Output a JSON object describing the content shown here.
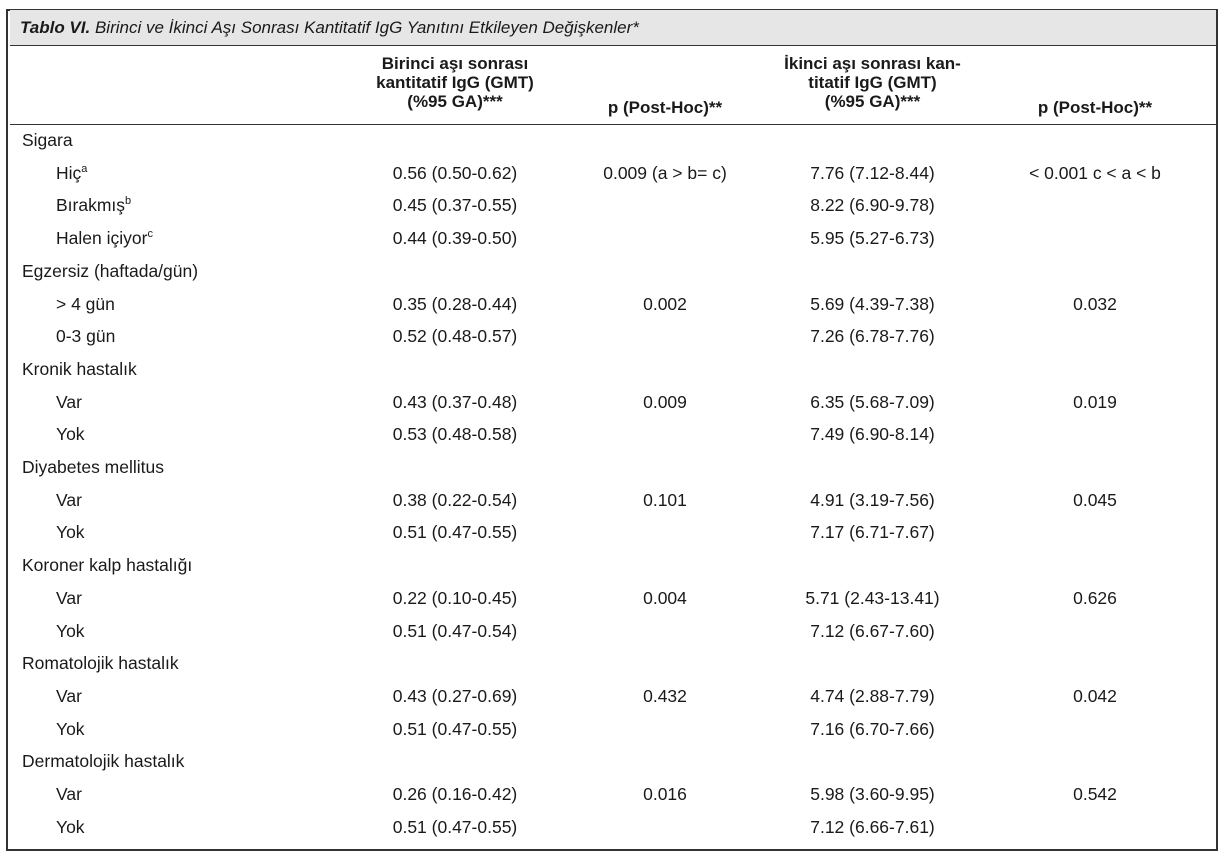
{
  "table": {
    "caption_label": "Tablo VI.",
    "caption_text": "Birinci ve İkinci Aşı Sonrası Kantitatif IgG Yanıtını Etkileyen Değişkenler*",
    "headers": {
      "col1_line1": "Birinci aşı sonrası",
      "col1_line2": "kantitatif IgG (GMT)",
      "col1_line3": "(%95 GA)***",
      "col2": "p (Post-Hoc)**",
      "col3_line1": "İkinci aşı sonrası kan-",
      "col3_line2": "titatif IgG (GMT)",
      "col3_line3": "(%95 GA)***",
      "col4": "p (Post-Hoc)**"
    },
    "groups": [
      {
        "label": "Sigara",
        "rows": [
          {
            "label": "Hiç",
            "sup": "a",
            "v1": "0.56 (0.50-0.62)",
            "p1": "0.009 (a > b= c)",
            "v2": "7.76 (7.12-8.44)",
            "p2": "< 0.001 c < a < b"
          },
          {
            "label": "Bırakmış",
            "sup": "b",
            "v1": "0.45 (0.37-0.55)",
            "p1": "",
            "v2": "8.22 (6.90-9.78)",
            "p2": ""
          },
          {
            "label": "Halen içiyor",
            "sup": "c",
            "v1": "0.44 (0.39-0.50)",
            "p1": "",
            "v2": "5.95 (5.27-6.73)",
            "p2": ""
          }
        ]
      },
      {
        "label": "Egzersiz (haftada/gün)",
        "rows": [
          {
            "label": "> 4 gün",
            "sup": "",
            "v1": "0.35 (0.28-0.44)",
            "p1": "0.002",
            "v2": "5.69 (4.39-7.38)",
            "p2": "0.032"
          },
          {
            "label": "0-3 gün",
            "sup": "",
            "v1": "0.52 (0.48-0.57)",
            "p1": "",
            "v2": "7.26 (6.78-7.76)",
            "p2": ""
          }
        ]
      },
      {
        "label": "Kronik hastalık",
        "rows": [
          {
            "label": "Var",
            "sup": "",
            "v1": "0.43 (0.37-0.48)",
            "p1": "0.009",
            "v2": "6.35 (5.68-7.09)",
            "p2": "0.019"
          },
          {
            "label": "Yok",
            "sup": "",
            "v1": "0.53 (0.48-0.58)",
            "p1": "",
            "v2": "7.49 (6.90-8.14)",
            "p2": ""
          }
        ]
      },
      {
        "label": "Diyabetes mellitus",
        "rows": [
          {
            "label": "Var",
            "sup": "",
            "v1": "0.38 (0.22-0.54)",
            "p1": "0.101",
            "v2": "4.91 (3.19-7.56)",
            "p2": "0.045"
          },
          {
            "label": "Yok",
            "sup": "",
            "v1": "0.51 (0.47-0.55)",
            "p1": "",
            "v2": "7.17 (6.71-7.67)",
            "p2": ""
          }
        ]
      },
      {
        "label": "Koroner kalp hastalığı",
        "rows": [
          {
            "label": "Var",
            "sup": "",
            "v1": "0.22 (0.10-0.45)",
            "p1": "0.004",
            "v2": "5.71 (2.43-13.41)",
            "p2": "0.626"
          },
          {
            "label": "Yok",
            "sup": "",
            "v1": "0.51 (0.47-0.54)",
            "p1": "",
            "v2": "7.12 (6.67-7.60)",
            "p2": ""
          }
        ]
      },
      {
        "label": "Romatolojik hastalık",
        "rows": [
          {
            "label": "Var",
            "sup": "",
            "v1": "0.43 (0.27-0.69)",
            "p1": "0.432",
            "v2": "4.74 (2.88-7.79)",
            "p2": "0.042"
          },
          {
            "label": "Yok",
            "sup": "",
            "v1": "0.51 (0.47-0.55)",
            "p1": "",
            "v2": "7.16 (6.70-7.66)",
            "p2": ""
          }
        ]
      },
      {
        "label": "Dermatolojik hastalık",
        "rows": [
          {
            "label": "Var",
            "sup": "",
            "v1": "0.26 (0.16-0.42)",
            "p1": "0.016",
            "v2": "5.98 (3.60-9.95)",
            "p2": "0.542"
          },
          {
            "label": "Yok",
            "sup": "",
            "v1": "0.51 (0.47-0.55)",
            "p1": "",
            "v2": "7.12 (6.66-7.61)",
            "p2": ""
          }
        ]
      }
    ]
  }
}
